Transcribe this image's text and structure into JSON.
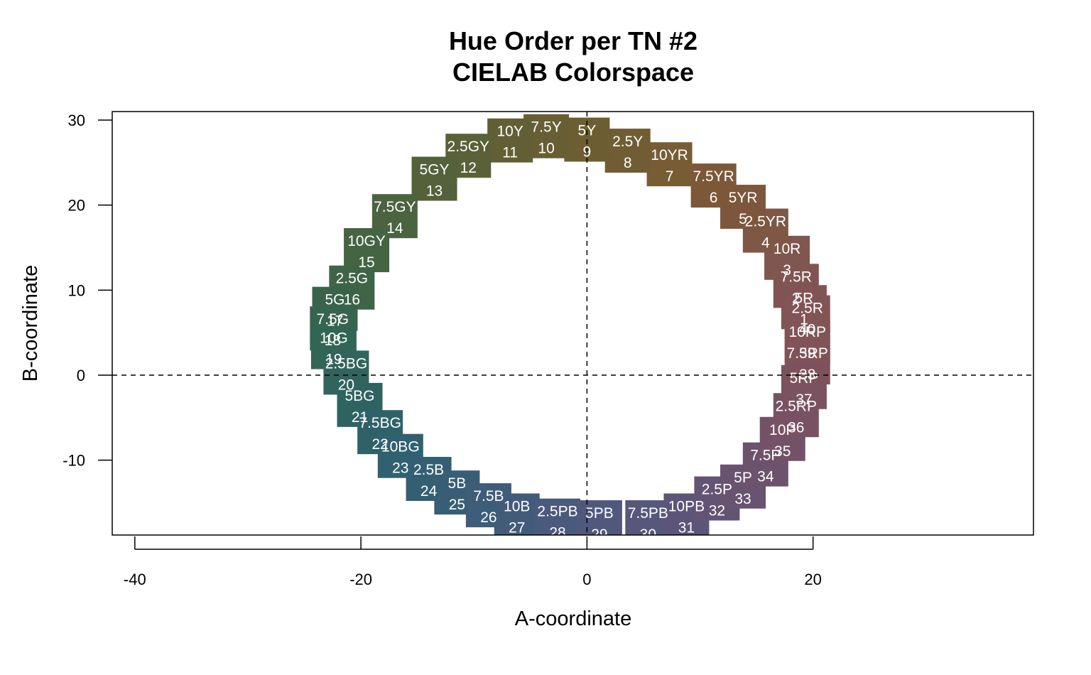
{
  "chart_data": {
    "type": "scatter",
    "title": "Hue Order per TN #2",
    "subtitle": "CIELAB Colorspace",
    "xlabel": "A-coordinate",
    "ylabel": "B-coordinate",
    "xlim": [
      -42,
      39.5
    ],
    "ylim": [
      -18.8,
      31
    ],
    "xticks": [
      -40,
      -20,
      0,
      20
    ],
    "yticks": [
      -10,
      0,
      10,
      20,
      30
    ],
    "reference_lines": {
      "vertical_at_x": 0,
      "horizontal_at_y": 0,
      "style": "dashed"
    },
    "grid": false,
    "legend": "none",
    "points": [
      {
        "order": 1,
        "hue": "5R",
        "a": 19.2,
        "b": 8.0,
        "color": "#815553"
      },
      {
        "order": 2,
        "hue": "7.5R",
        "a": 18.5,
        "b": 10.5,
        "color": "#815453"
      },
      {
        "order": 3,
        "hue": "10R",
        "a": 17.7,
        "b": 13.8,
        "color": "#805650"
      },
      {
        "order": 4,
        "hue": "2.5YR",
        "a": 15.8,
        "b": 17.0,
        "color": "#7e5745"
      },
      {
        "order": 5,
        "hue": "5YR",
        "a": 13.8,
        "b": 19.8,
        "color": "#7d573d"
      },
      {
        "order": 6,
        "hue": "7.5YR",
        "a": 11.2,
        "b": 22.3,
        "color": "#7c5838"
      },
      {
        "order": 7,
        "hue": "10YR",
        "a": 7.3,
        "b": 24.8,
        "color": "#785c34"
      },
      {
        "order": 8,
        "hue": "2.5Y",
        "a": 3.6,
        "b": 26.4,
        "color": "#715d34"
      },
      {
        "order": 9,
        "hue": "5Y",
        "a": 0.0,
        "b": 27.7,
        "color": "#6c5e32"
      },
      {
        "order": 10,
        "hue": "7.5Y",
        "a": -3.6,
        "b": 28.1,
        "color": "#675f33"
      },
      {
        "order": 11,
        "hue": "10Y",
        "a": -6.8,
        "b": 27.6,
        "color": "#625f35"
      },
      {
        "order": 12,
        "hue": "2.5GY",
        "a": -10.5,
        "b": 25.8,
        "color": "#5a6138"
      },
      {
        "order": 13,
        "hue": "5GY",
        "a": -13.5,
        "b": 23.1,
        "color": "#54613a"
      },
      {
        "order": 14,
        "hue": "7.5GY",
        "a": -17.0,
        "b": 18.7,
        "color": "#4b633f"
      },
      {
        "order": 15,
        "hue": "10GY",
        "a": -19.5,
        "b": 14.7,
        "color": "#456442"
      },
      {
        "order": 16,
        "hue": "2.5G",
        "a": -20.8,
        "b": 10.3,
        "color": "#3f6446"
      },
      {
        "order": 17,
        "hue": "5G",
        "a": -22.3,
        "b": 7.8,
        "color": "#3a6449"
      },
      {
        "order": 18,
        "hue": "7.5G",
        "a": -22.5,
        "b": 5.5,
        "color": "#36644f"
      },
      {
        "order": 19,
        "hue": "10G",
        "a": -22.4,
        "b": 3.3,
        "color": "#336554"
      },
      {
        "order": 20,
        "hue": "2.5BG",
        "a": -21.3,
        "b": 0.3,
        "color": "#31645c"
      },
      {
        "order": 21,
        "hue": "5BG",
        "a": -20.1,
        "b": -3.5,
        "color": "#2f6362"
      },
      {
        "order": 22,
        "hue": "7.5BG",
        "a": -18.3,
        "b": -6.7,
        "color": "#2f6268"
      },
      {
        "order": 23,
        "hue": "10BG",
        "a": -16.5,
        "b": -9.5,
        "color": "#306170"
      },
      {
        "order": 24,
        "hue": "2.5B",
        "a": -14.0,
        "b": -12.2,
        "color": "#345f73"
      },
      {
        "order": 25,
        "hue": "5B",
        "a": -11.5,
        "b": -13.8,
        "color": "#385e76"
      },
      {
        "order": 26,
        "hue": "7.5B",
        "a": -8.7,
        "b": -15.3,
        "color": "#3d5d79"
      },
      {
        "order": 27,
        "hue": "10B",
        "a": -6.2,
        "b": -16.5,
        "color": "#435b7a"
      },
      {
        "order": 28,
        "hue": "2.5PB",
        "a": -2.6,
        "b": -17.1,
        "color": "#4a5a7c"
      },
      {
        "order": 29,
        "hue": "5PB",
        "a": 1.1,
        "b": -17.3,
        "color": "#50587c"
      },
      {
        "order": 30,
        "hue": "7.5PB",
        "a": 5.4,
        "b": -17.3,
        "color": "#56577b"
      },
      {
        "order": 31,
        "hue": "10PB",
        "a": 8.8,
        "b": -16.5,
        "color": "#5c5579"
      },
      {
        "order": 32,
        "hue": "2.5P",
        "a": 11.5,
        "b": -14.5,
        "color": "#635474"
      },
      {
        "order": 33,
        "hue": "5P",
        "a": 13.8,
        "b": -13.1,
        "color": "#685370"
      },
      {
        "order": 34,
        "hue": "7.5P",
        "a": 15.8,
        "b": -10.5,
        "color": "#6d526d"
      },
      {
        "order": 35,
        "hue": "10P",
        "a": 17.3,
        "b": -7.5,
        "color": "#735268"
      },
      {
        "order": 36,
        "hue": "2.5RP",
        "a": 18.5,
        "b": -4.7,
        "color": "#785263"
      },
      {
        "order": 37,
        "hue": "5RP",
        "a": 19.2,
        "b": -1.4,
        "color": "#7b525f"
      },
      {
        "order": 38,
        "hue": "7.5RP",
        "a": 19.5,
        "b": 1.5,
        "color": "#7e525c"
      },
      {
        "order": 39,
        "hue": "10RP",
        "a": 19.5,
        "b": 4.0,
        "color": "#805359"
      },
      {
        "order": 40,
        "hue": "2.5R",
        "a": 19.5,
        "b": 6.8,
        "color": "#815456"
      }
    ]
  }
}
